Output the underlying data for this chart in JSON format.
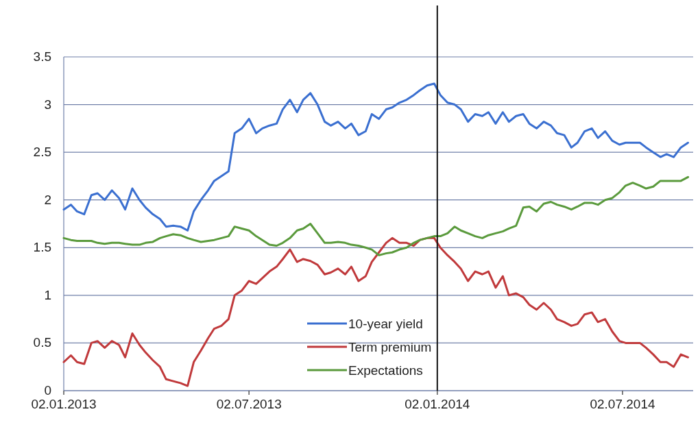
{
  "chart_data": {
    "type": "line",
    "x": [
      "2013-01-02",
      "2013-01-09",
      "2013-01-15",
      "2013-01-22",
      "2013-01-29",
      "2013-02-04",
      "2013-02-11",
      "2013-02-18",
      "2013-02-25",
      "2013-03-03",
      "2013-03-10",
      "2013-03-17",
      "2013-03-23",
      "2013-03-30",
      "2013-04-06",
      "2013-04-12",
      "2013-04-19",
      "2013-04-26",
      "2013-05-03",
      "2013-05-09",
      "2013-05-16",
      "2013-05-23",
      "2013-05-29",
      "2013-06-05",
      "2013-06-12",
      "2013-06-18",
      "2013-06-25",
      "2013-07-02",
      "2013-07-09",
      "2013-07-15",
      "2013-07-22",
      "2013-07-29",
      "2013-08-04",
      "2013-08-11",
      "2013-08-18",
      "2013-08-24",
      "2013-08-31",
      "2013-09-07",
      "2013-09-14",
      "2013-09-20",
      "2013-09-27",
      "2013-10-04",
      "2013-10-10",
      "2013-10-17",
      "2013-10-24",
      "2013-10-30",
      "2013-11-06",
      "2013-11-13",
      "2013-11-19",
      "2013-11-26",
      "2013-12-03",
      "2013-12-10",
      "2013-12-16",
      "2013-12-23",
      "2013-12-30",
      "2014-01-05",
      "2014-01-12",
      "2014-01-19",
      "2014-01-25",
      "2014-02-01",
      "2014-02-08",
      "2014-02-15",
      "2014-02-21",
      "2014-02-28",
      "2014-03-07",
      "2014-03-13",
      "2014-03-20",
      "2014-03-27",
      "2014-04-02",
      "2014-04-09",
      "2014-04-16",
      "2014-04-23",
      "2014-04-29",
      "2014-05-06",
      "2014-05-13",
      "2014-05-19",
      "2014-05-26",
      "2014-06-02",
      "2014-06-08",
      "2014-06-15",
      "2014-06-22",
      "2014-06-29",
      "2014-07-05",
      "2014-07-12",
      "2014-07-19",
      "2014-07-25",
      "2014-08-01",
      "2014-08-08",
      "2014-08-14",
      "2014-08-21",
      "2014-08-28",
      "2014-09-04"
    ],
    "series": [
      {
        "name": "10-year yield",
        "color": "#3a6fd0",
        "values": [
          1.9,
          1.95,
          1.88,
          1.85,
          2.05,
          2.07,
          2.0,
          2.1,
          2.02,
          1.9,
          2.12,
          2.0,
          1.92,
          1.85,
          1.8,
          1.72,
          1.73,
          1.72,
          1.68,
          1.88,
          2.0,
          2.1,
          2.2,
          2.25,
          2.3,
          2.7,
          2.75,
          2.85,
          2.7,
          2.75,
          2.78,
          2.8,
          2.95,
          3.05,
          2.92,
          3.05,
          3.12,
          3.0,
          2.82,
          2.78,
          2.82,
          2.75,
          2.8,
          2.68,
          2.72,
          2.9,
          2.85,
          2.95,
          2.97,
          3.02,
          3.05,
          3.1,
          3.15,
          3.2,
          3.22,
          3.1,
          3.02,
          3.0,
          2.95,
          2.82,
          2.9,
          2.88,
          2.92,
          2.8,
          2.92,
          2.82,
          2.88,
          2.9,
          2.8,
          2.75,
          2.82,
          2.78,
          2.7,
          2.68,
          2.55,
          2.6,
          2.72,
          2.75,
          2.65,
          2.72,
          2.62,
          2.58,
          2.6,
          2.6,
          2.6,
          2.55,
          2.5,
          2.45,
          2.48,
          2.45,
          2.55,
          2.6
        ]
      },
      {
        "name": "Term premium",
        "color": "#c0393b",
        "values": [
          0.3,
          0.37,
          0.3,
          0.28,
          0.5,
          0.52,
          0.45,
          0.52,
          0.48,
          0.35,
          0.6,
          0.48,
          0.4,
          0.32,
          0.25,
          0.12,
          0.1,
          0.08,
          0.05,
          0.3,
          0.42,
          0.55,
          0.65,
          0.68,
          0.75,
          1.0,
          1.05,
          1.15,
          1.12,
          1.18,
          1.25,
          1.3,
          1.38,
          1.48,
          1.35,
          1.38,
          1.36,
          1.32,
          1.22,
          1.24,
          1.28,
          1.22,
          1.3,
          1.15,
          1.2,
          1.35,
          1.45,
          1.55,
          1.6,
          1.55,
          1.55,
          1.52,
          1.58,
          1.6,
          1.6,
          1.5,
          1.42,
          1.35,
          1.28,
          1.15,
          1.25,
          1.22,
          1.25,
          1.08,
          1.2,
          1.0,
          1.02,
          0.98,
          0.9,
          0.85,
          0.92,
          0.85,
          0.75,
          0.72,
          0.68,
          0.7,
          0.8,
          0.82,
          0.72,
          0.75,
          0.62,
          0.52,
          0.5,
          0.5,
          0.5,
          0.45,
          0.38,
          0.3,
          0.3,
          0.25,
          0.38,
          0.35
        ]
      },
      {
        "name": "Expectations",
        "color": "#5a9a3c",
        "values": [
          1.6,
          1.58,
          1.57,
          1.57,
          1.57,
          1.55,
          1.54,
          1.55,
          1.55,
          1.54,
          1.53,
          1.53,
          1.55,
          1.56,
          1.6,
          1.62,
          1.64,
          1.63,
          1.6,
          1.58,
          1.56,
          1.57,
          1.58,
          1.6,
          1.62,
          1.72,
          1.7,
          1.68,
          1.62,
          1.58,
          1.53,
          1.52,
          1.55,
          1.6,
          1.68,
          1.7,
          1.75,
          1.65,
          1.55,
          1.55,
          1.56,
          1.55,
          1.53,
          1.52,
          1.5,
          1.48,
          1.42,
          1.44,
          1.45,
          1.48,
          1.5,
          1.55,
          1.58,
          1.6,
          1.62,
          1.62,
          1.65,
          1.72,
          1.68,
          1.65,
          1.62,
          1.6,
          1.63,
          1.65,
          1.67,
          1.7,
          1.73,
          1.92,
          1.93,
          1.88,
          1.96,
          1.98,
          1.95,
          1.93,
          1.9,
          1.93,
          1.97,
          1.97,
          1.95,
          2.0,
          2.02,
          2.08,
          2.15,
          2.18,
          2.15,
          2.12,
          2.14,
          2.2,
          2.2,
          2.2,
          2.2,
          2.24
        ]
      }
    ],
    "xlim": [
      "2013-01-02",
      "2014-09-09"
    ],
    "xticks": [
      {
        "value": "2013-01-02",
        "label": "02.01.2013"
      },
      {
        "value": "2013-07-02",
        "label": "02.07.2013"
      },
      {
        "value": "2014-01-02",
        "label": "02.01.2014"
      },
      {
        "value": "2014-07-02",
        "label": "02.07.2014"
      }
    ],
    "ylim": [
      0,
      3.5
    ],
    "yticks": [
      0,
      0.5,
      1,
      1.5,
      2,
      2.5,
      3,
      3.5
    ],
    "grid": "y",
    "legend": "bottom",
    "ref_lines": [
      {
        "axis": "x",
        "value": "2014-01-02",
        "color": "#111111"
      }
    ]
  }
}
